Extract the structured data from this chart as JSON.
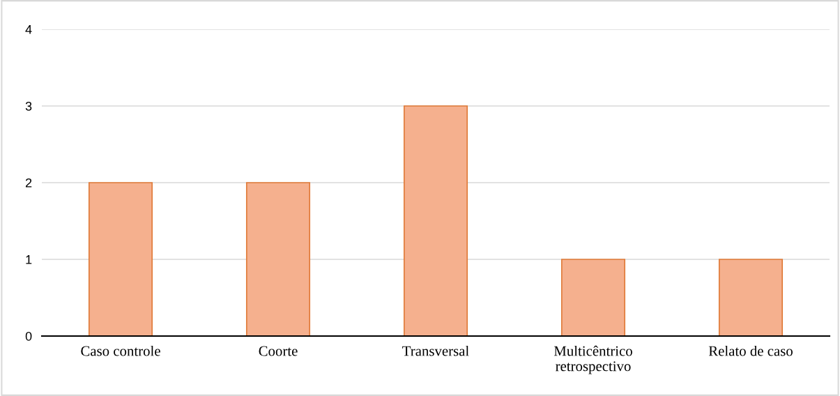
{
  "chart_data": {
    "type": "bar",
    "categories": [
      "Caso controle",
      "Coorte",
      "Transversal",
      "Multicêntrico\nretrospectivo",
      "Relato de caso"
    ],
    "values": [
      2,
      2,
      3,
      1,
      1
    ],
    "color": "#f5b08e",
    "ylim": [
      0,
      4
    ],
    "yticks": [
      0,
      1,
      2,
      3,
      4
    ],
    "grid": "y",
    "legend": false
  }
}
